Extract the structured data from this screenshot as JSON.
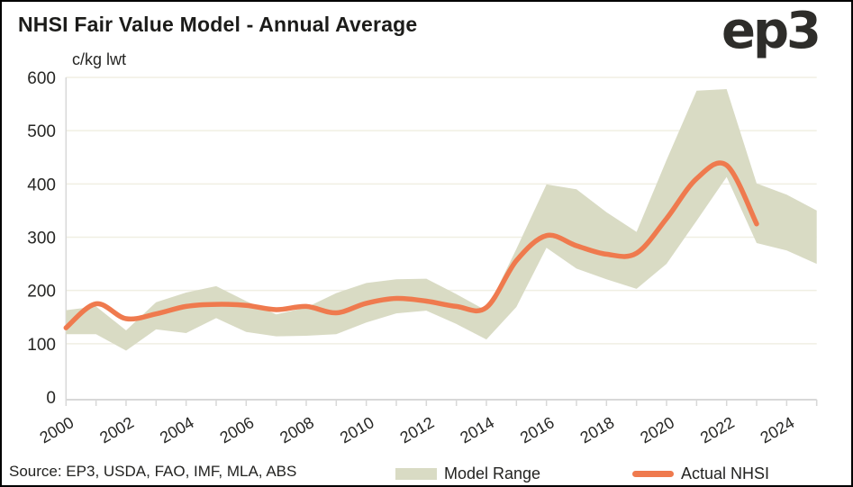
{
  "header": {
    "title": "NHSI Fair Value Model - Annual Average",
    "logo": "ep3"
  },
  "axis_unit_label": "c/kg lwt",
  "source_text": "Source: EP3, USDA, FAO, IMF, MLA, ABS",
  "legend": {
    "model_range_label": "Model Range",
    "actual_nhsi_label": "Actual NHSI"
  },
  "colors": {
    "band": "#d9dbc4",
    "line": "#ef7a4e",
    "gridline": "#f0efe3",
    "axis": "#d8d8d8",
    "text": "#262624"
  },
  "chart_data": {
    "type": "line",
    "title": "NHSI Fair Value Model - Annual Average",
    "ylabel": "c/kg lwt",
    "ylim": [
      0,
      600
    ],
    "yticks": [
      0,
      100,
      200,
      300,
      400,
      500,
      600
    ],
    "grid": true,
    "legend_position": "bottom",
    "x": [
      2000,
      2001,
      2002,
      2003,
      2004,
      2005,
      2006,
      2007,
      2008,
      2009,
      2010,
      2011,
      2012,
      2013,
      2014,
      2015,
      2016,
      2017,
      2018,
      2019,
      2020,
      2021,
      2022,
      2023,
      2024,
      2025
    ],
    "xtick_labels": [
      "2000",
      "2002",
      "2004",
      "2006",
      "2008",
      "2010",
      "2012",
      "2014",
      "2016",
      "2018",
      "2020",
      "2022",
      "2024"
    ],
    "series": [
      {
        "name": "Model Range",
        "type": "band",
        "color": "#d9dbc4",
        "low": [
          118,
          118,
          87,
          127,
          120,
          148,
          122,
          114,
          115,
          118,
          140,
          157,
          162,
          137,
          108,
          169,
          280,
          241,
          221,
          203,
          250,
          331,
          413,
          289,
          275,
          250
        ],
        "high": [
          163,
          170,
          125,
          178,
          196,
          208,
          180,
          155,
          168,
          195,
          214,
          221,
          222,
          193,
          162,
          278,
          399,
          390,
          347,
          310,
          445,
          575,
          578,
          401,
          380,
          350
        ]
      },
      {
        "name": "Actual NHSI",
        "type": "line",
        "color": "#ef7a4e",
        "smooth": true,
        "values": [
          130,
          175,
          147,
          156,
          170,
          174,
          172,
          164,
          170,
          158,
          176,
          185,
          180,
          170,
          168,
          256,
          303,
          284,
          268,
          270,
          335,
          410,
          435,
          325,
          null,
          null
        ]
      }
    ]
  }
}
